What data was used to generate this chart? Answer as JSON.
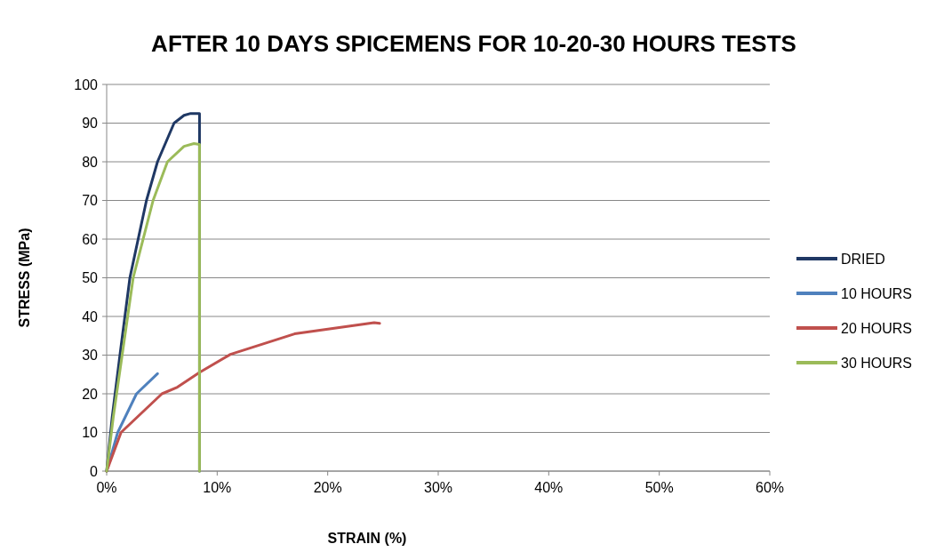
{
  "chart_data": {
    "type": "line",
    "title": "AFTER 10 DAYS SPICEMENS FOR 10-20-30 HOURS TESTS",
    "xlabel": "STRAIN (%)",
    "ylabel": "STRESS (MPa)",
    "xlim": [
      0,
      60
    ],
    "xticks": [
      {
        "value": 0,
        "label": "0%"
      },
      {
        "value": 10,
        "label": "10%"
      },
      {
        "value": 20,
        "label": "20%"
      },
      {
        "value": 30,
        "label": "30%"
      },
      {
        "value": 40,
        "label": "40%"
      },
      {
        "value": 50,
        "label": "50%"
      },
      {
        "value": 60,
        "label": "60%"
      }
    ],
    "ylim": [
      0,
      100
    ],
    "yticks": [
      0,
      10,
      20,
      30,
      40,
      50,
      60,
      70,
      80,
      90,
      100
    ],
    "grid": "y",
    "legend": "right",
    "marker": "none",
    "line_style": "solid",
    "series": [
      {
        "name": "DRIED",
        "color": "#1f3864",
        "x": [
          0,
          0.5,
          1.2,
          2.1,
          3.6,
          4.6,
          6.1,
          7.0,
          7.6,
          8.4,
          8.4,
          8.4
        ],
        "values": [
          0,
          14,
          30,
          50,
          70,
          80,
          90,
          92,
          92.5,
          92.5,
          84.5,
          0
        ]
      },
      {
        "name": "10 HOURS",
        "color": "#4f81bd",
        "x": [
          0,
          1.0,
          2.7,
          4.6
        ],
        "values": [
          0,
          10,
          20,
          25.2
        ]
      },
      {
        "name": "20 HOURS",
        "color": "#c0504d",
        "x": [
          0,
          1.3,
          5.0,
          6.4,
          8.4,
          11.2,
          17.0,
          24.2,
          24.7
        ],
        "values": [
          0,
          10,
          20,
          21.7,
          25.5,
          30.2,
          35.5,
          38.4,
          38.2
        ]
      },
      {
        "name": "30 HOURS",
        "color": "#9bbb59",
        "x": [
          0,
          0.6,
          1.4,
          2.4,
          4.2,
          5.5,
          7.0,
          7.9,
          8.4,
          8.4
        ],
        "values": [
          0,
          14,
          30,
          50,
          70,
          80,
          84,
          84.7,
          84.5,
          0
        ]
      }
    ]
  }
}
